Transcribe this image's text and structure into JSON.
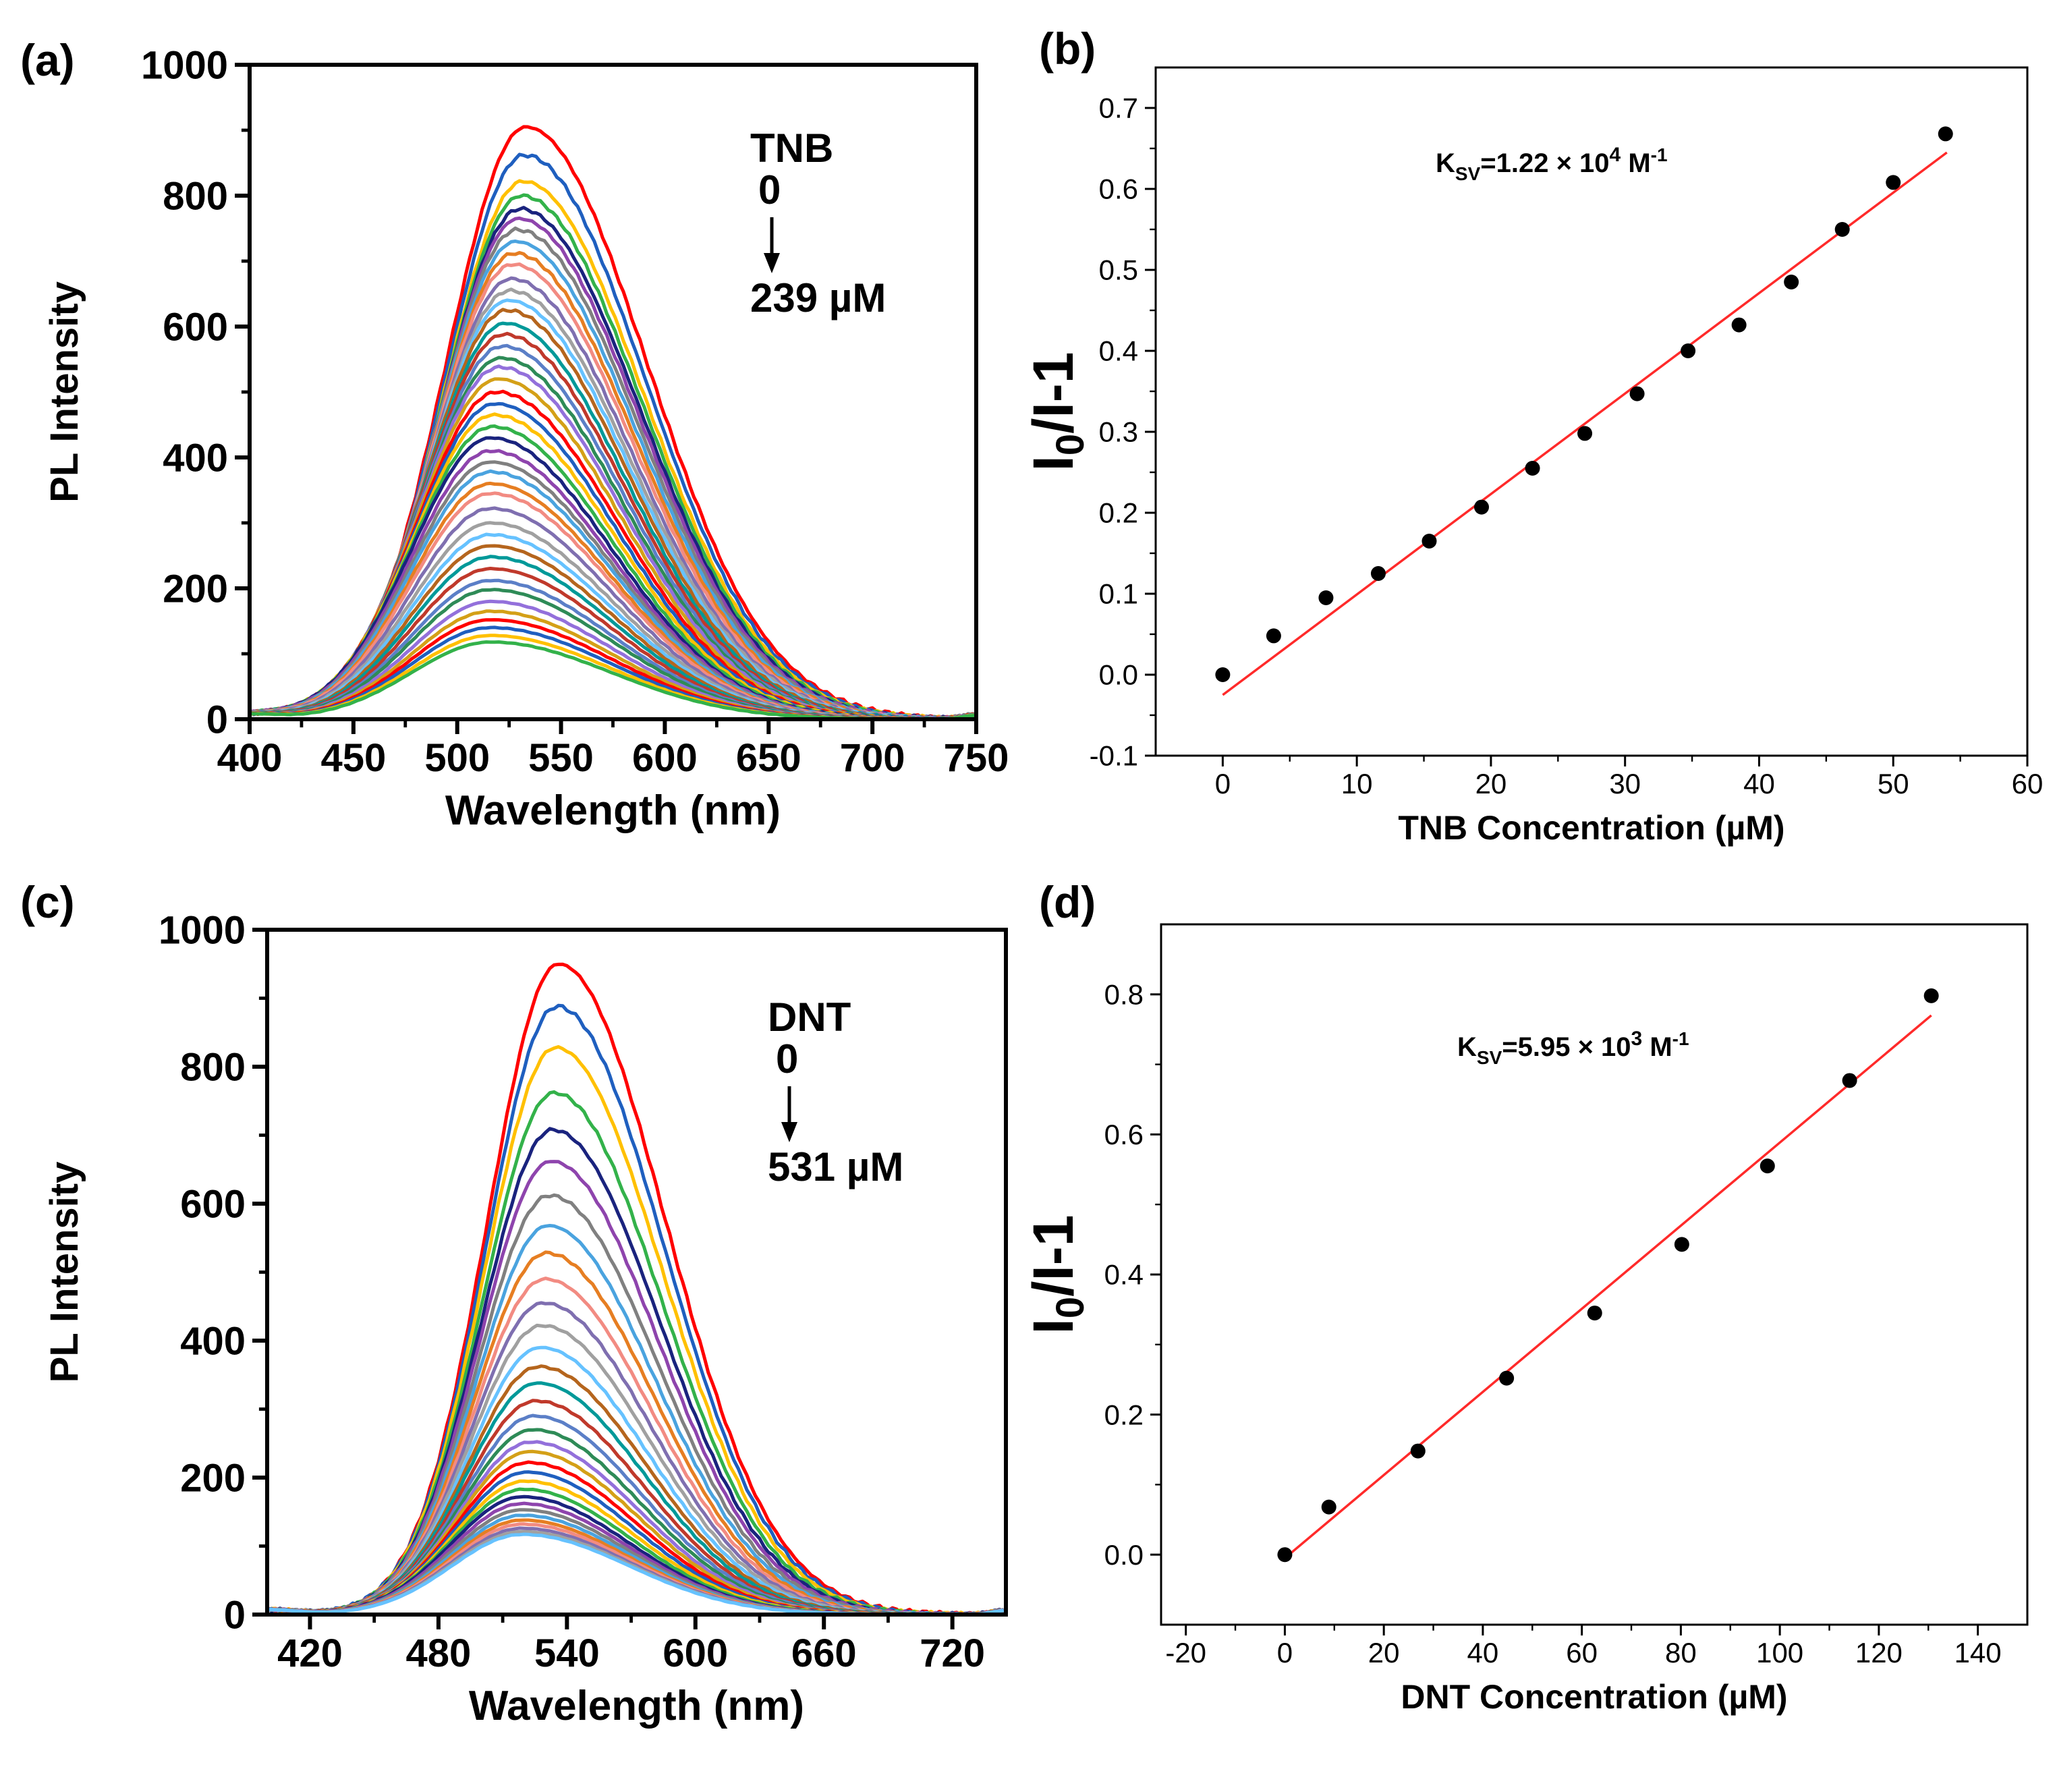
{
  "figure": {
    "panels": [
      {
        "id": "a",
        "label": "(a)"
      },
      {
        "id": "b",
        "label": "(b)"
      },
      {
        "id": "c",
        "label": "(c)"
      },
      {
        "id": "d",
        "label": "(d)"
      }
    ]
  },
  "colors": {
    "axis": "#000000",
    "fit_line": "#ff2a2a",
    "points": "#000000",
    "spectrum_palette": [
      "#ff0000",
      "#1f5fbf",
      "#ffc000",
      "#33b24a",
      "#1a237e",
      "#8e44ad",
      "#808080",
      "#4aa3df",
      "#e67e22",
      "#f28b82",
      "#7f6fb0",
      "#a0a0a0",
      "#66c2ff",
      "#b5651d",
      "#009999",
      "#c0392b",
      "#5b7fc7",
      "#2e8b57",
      "#9370db",
      "#d4a017"
    ]
  },
  "chart_data": [
    {
      "id": "a",
      "type": "line",
      "title": "",
      "xlabel": "Wavelength (nm)",
      "ylabel": "PL Intensity",
      "xlim": [
        400,
        750
      ],
      "ylim": [
        0,
        1000
      ],
      "xticks": [
        400,
        450,
        500,
        550,
        600,
        650,
        700,
        750
      ],
      "yticks": [
        0,
        200,
        400,
        600,
        800,
        1000
      ],
      "annotation": {
        "analyte": "TNB",
        "start": "0",
        "end": "239 µM"
      },
      "series_peak_wavelength": 533,
      "series_shape": {
        "sigma_left": 38,
        "sigma_right": 58
      },
      "series_peaks": [
        905,
        862,
        822,
        800,
        780,
        765,
        748,
        730,
        712,
        695,
        673,
        655,
        640,
        625,
        605,
        588,
        570,
        552,
        538,
        520,
        500,
        482,
        465,
        447,
        430,
        410,
        393,
        378,
        360,
        345,
        322,
        300,
        282,
        265,
        248,
        230,
        212,
        198,
        180,
        165,
        152,
        140,
        128,
        118
      ]
    },
    {
      "id": "b",
      "type": "scatter",
      "title": "",
      "xlabel": "TNB Concentration (µM)",
      "ylabel": "I0/I-1",
      "xlim": [
        -5,
        60
      ],
      "ylim": [
        -0.1,
        0.75
      ],
      "xticks": [
        0,
        10,
        20,
        30,
        40,
        50,
        60
      ],
      "yticks": [
        -0.1,
        0.0,
        0.1,
        0.2,
        0.3,
        0.4,
        0.5,
        0.6,
        0.7
      ],
      "points_x": [
        0,
        3.8,
        7.7,
        11.6,
        15.4,
        19.3,
        23.1,
        27.0,
        30.9,
        34.7,
        38.5,
        42.4,
        46.2,
        50.0,
        53.9
      ],
      "points_y": [
        0.0,
        0.048,
        0.095,
        0.125,
        0.165,
        0.207,
        0.255,
        0.298,
        0.347,
        0.4,
        0.432,
        0.485,
        0.55,
        0.608,
        0.668
      ],
      "fit": {
        "x": [
          0,
          54
        ],
        "y": [
          -0.025,
          0.645
        ]
      },
      "annotation": {
        "base": "K",
        "sub": "SV",
        "text": "=1.22 × 10",
        "sup": "4",
        "unit": " M",
        "unit_sup": "-1"
      }
    },
    {
      "id": "c",
      "type": "line",
      "title": "",
      "xlabel": "Wavelength (nm)",
      "ylabel": "PL Intensity",
      "xlim": [
        400,
        745
      ],
      "ylim": [
        0,
        1000
      ],
      "xticks": [
        420,
        480,
        540,
        600,
        660,
        720
      ],
      "yticks": [
        0,
        200,
        400,
        600,
        800,
        1000
      ],
      "annotation": {
        "analyte": "DNT",
        "start": "0",
        "end": "531 µM"
      },
      "series_peak_wavelength": 536,
      "series_shape": {
        "sigma_left": 33,
        "sigma_right": 50
      },
      "series_peaks": [
        950,
        888,
        828,
        762,
        708,
        662,
        612,
        568,
        528,
        490,
        455,
        422,
        390,
        362,
        338,
        312,
        290,
        270,
        252,
        238,
        222,
        208,
        195,
        183,
        172,
        162,
        153,
        145,
        138,
        132,
        126,
        121,
        117
      ]
    },
    {
      "id": "d",
      "type": "scatter",
      "title": "",
      "xlabel": "DNT Concentration (µM)",
      "ylabel": "I0/I-1",
      "xlim": [
        -25,
        150
      ],
      "ylim": [
        -0.1,
        0.9
      ],
      "xticks": [
        -20,
        0,
        20,
        40,
        60,
        80,
        100,
        120,
        140
      ],
      "yticks": [
        0.0,
        0.2,
        0.4,
        0.6,
        0.8
      ],
      "points_x": [
        0,
        8.9,
        26.9,
        44.8,
        62.6,
        80.2,
        97.5,
        114.1,
        130.6
      ],
      "points_y": [
        0.0,
        0.068,
        0.148,
        0.252,
        0.345,
        0.443,
        0.555,
        0.677,
        0.798
      ],
      "fit": {
        "x": [
          0,
          130.6
        ],
        "y": [
          -0.005,
          0.77
        ]
      },
      "annotation": {
        "base": "K",
        "sub": "SV",
        "text": "=5.95 × 10",
        "sup": "3",
        "unit": " M",
        "unit_sup": "-1"
      }
    }
  ]
}
